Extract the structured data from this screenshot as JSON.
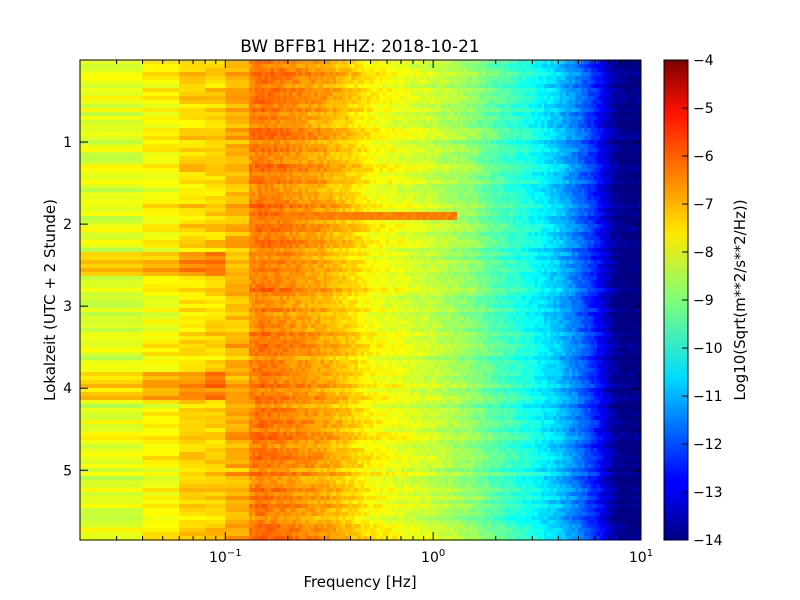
{
  "chart_data": {
    "type": "heatmap",
    "title": "BW BFFB1 HHZ: 2018-10-21",
    "xlabel": "Frequency [Hz]",
    "ylabel": "Lokalzeit (UTC + 2 Stunde)",
    "x_scale": "log",
    "xlim": [
      0.02,
      10
    ],
    "ylim": [
      5.85,
      0
    ],
    "x_ticks": [
      {
        "value": 0.1,
        "base": "10",
        "exp": "−1"
      },
      {
        "value": 1,
        "base": "10",
        "exp": "0"
      },
      {
        "value": 10,
        "base": "10",
        "exp": "1"
      }
    ],
    "y_ticks": [
      {
        "value": 1,
        "label": "1"
      },
      {
        "value": 2,
        "label": "2"
      },
      {
        "value": 3,
        "label": "3"
      },
      {
        "value": 4,
        "label": "4"
      },
      {
        "value": 5,
        "label": "5"
      }
    ],
    "colormap": "jet",
    "colorbar": {
      "label": "Log10(Sqrt(m**2/s**2/Hz))",
      "range": [
        -14,
        -4
      ],
      "ticks": [
        {
          "value": -4,
          "label": "−4"
        },
        {
          "value": -5,
          "label": "−5"
        },
        {
          "value": -6,
          "label": "−6"
        },
        {
          "value": -7,
          "label": "−7"
        },
        {
          "value": -8,
          "label": "−8"
        },
        {
          "value": -9,
          "label": "−9"
        },
        {
          "value": -10,
          "label": "−10"
        },
        {
          "value": -11,
          "label": "−11"
        },
        {
          "value": -12,
          "label": "−12"
        },
        {
          "value": -13,
          "label": "−13"
        },
        {
          "value": -14,
          "label": "−14"
        }
      ]
    },
    "spectrum_profile": {
      "frequencies_hz": [
        0.02,
        0.04,
        0.06,
        0.08,
        0.1,
        0.13,
        0.15,
        0.2,
        0.3,
        0.4,
        0.5,
        0.7,
        1.0,
        1.5,
        2.0,
        3.0,
        4.0,
        5.0,
        6.0,
        7.0,
        8.0,
        10.0
      ],
      "values": [
        -8.1,
        -8.0,
        -7.5,
        -7.3,
        -7.4,
        -6.6,
        -6.4,
        -6.6,
        -6.9,
        -7.3,
        -7.7,
        -8.0,
        -8.3,
        -8.8,
        -9.4,
        -10.1,
        -10.8,
        -11.6,
        -12.4,
        -13.4,
        -14.0,
        -14.0
      ]
    },
    "events": [
      {
        "time": 1.9,
        "freq_range_hz": [
          0.13,
          1.3
        ],
        "value": -6.5
      }
    ]
  }
}
